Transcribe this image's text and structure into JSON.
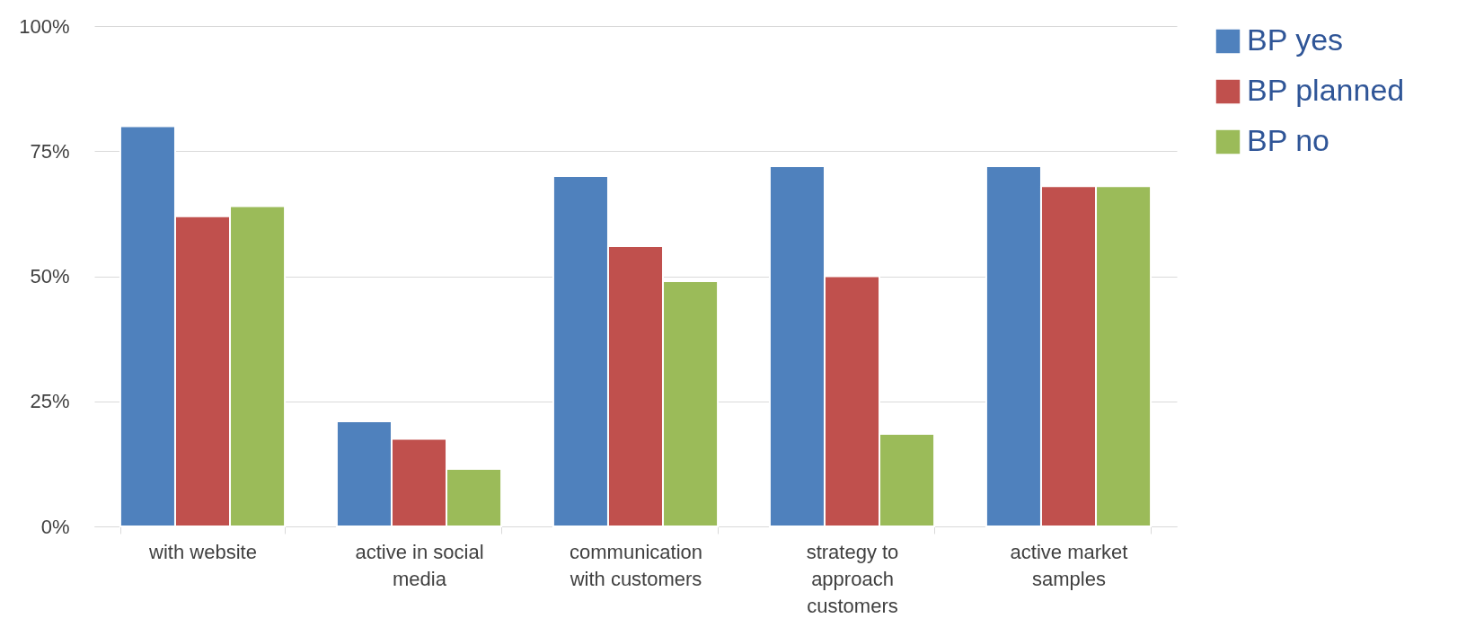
{
  "chart_data": {
    "type": "bar",
    "categories": [
      "with website",
      "active in social media",
      "communication with customers",
      "strategy to approach customers",
      "active market samples"
    ],
    "series": [
      {
        "name": "BP yes",
        "color": "#4f81bd",
        "values": [
          80,
          21,
          70,
          72,
          72
        ]
      },
      {
        "name": "BP planned",
        "color": "#c0504d",
        "values": [
          62,
          17.5,
          56,
          50,
          68
        ]
      },
      {
        "name": "BP no",
        "color": "#9bbb59",
        "values": [
          64,
          11.5,
          49,
          18.5,
          68
        ]
      }
    ],
    "ylim": [
      0,
      100
    ],
    "yticks": [
      {
        "value": 0,
        "label": "0%"
      },
      {
        "value": 25,
        "label": "25%"
      },
      {
        "value": 50,
        "label": "50%"
      },
      {
        "value": 75,
        "label": "75%"
      },
      {
        "value": 100,
        "label": "100%"
      }
    ],
    "grid": "y",
    "legend": "right"
  }
}
